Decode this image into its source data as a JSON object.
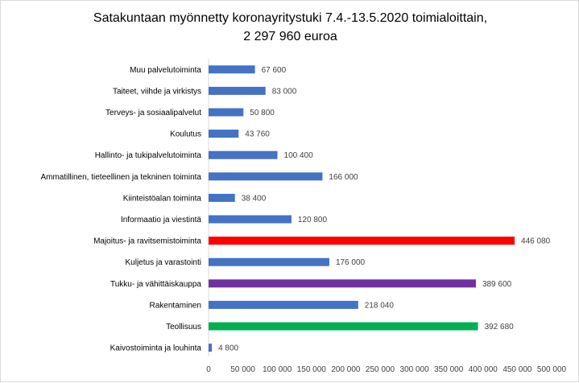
{
  "chart_data": {
    "type": "bar",
    "orientation": "horizontal",
    "title": "Satakuntaan myönnetty koronayritystuki 7.4.-13.5.2020 toimialoittain,",
    "subtitle": "2 297 960 euroa",
    "xlim": [
      0,
      500000
    ],
    "xticks": [
      "0",
      "50 000",
      "100 000",
      "150 000",
      "200 000",
      "250 000",
      "300 000",
      "350 000",
      "400 000",
      "450 000",
      "500 000"
    ],
    "grid": false,
    "legend": "none",
    "categories": [
      "Muu palvelutoiminta",
      "Taiteet, viihde ja virkistys",
      "Terveys- ja sosiaalipalvelut",
      "Koulutus",
      "Hallinto- ja tukipalvelutoiminta",
      "Ammatillinen, tieteellinen ja tekninen toiminta",
      "Kiinteistöalan toiminta",
      "Informaatio ja viestintä",
      "Majoitus- ja ravitsemistoiminta",
      "Kuljetus ja varastointi",
      "Tukku- ja vähittäiskauppa",
      "Rakentaminen",
      "Teollisuus",
      "Kaivostoiminta ja louhinta"
    ],
    "values": [
      67600,
      83000,
      50800,
      43760,
      100400,
      166000,
      38400,
      120800,
      446080,
      176000,
      389600,
      218040,
      392680,
      4800
    ],
    "value_labels": [
      "67 600",
      "83 000",
      "50 800",
      "43 760",
      "100 400",
      "166 000",
      "38 400",
      "120 800",
      "446 080",
      "176 000",
      "389 600",
      "218 040",
      "392 680",
      "4 800"
    ],
    "colors": [
      "#4472c4",
      "#4472c4",
      "#4472c4",
      "#4472c4",
      "#4472c4",
      "#4472c4",
      "#4472c4",
      "#4472c4",
      "#ff0000",
      "#4472c4",
      "#7030a0",
      "#4472c4",
      "#00b050",
      "#4472c4"
    ]
  }
}
